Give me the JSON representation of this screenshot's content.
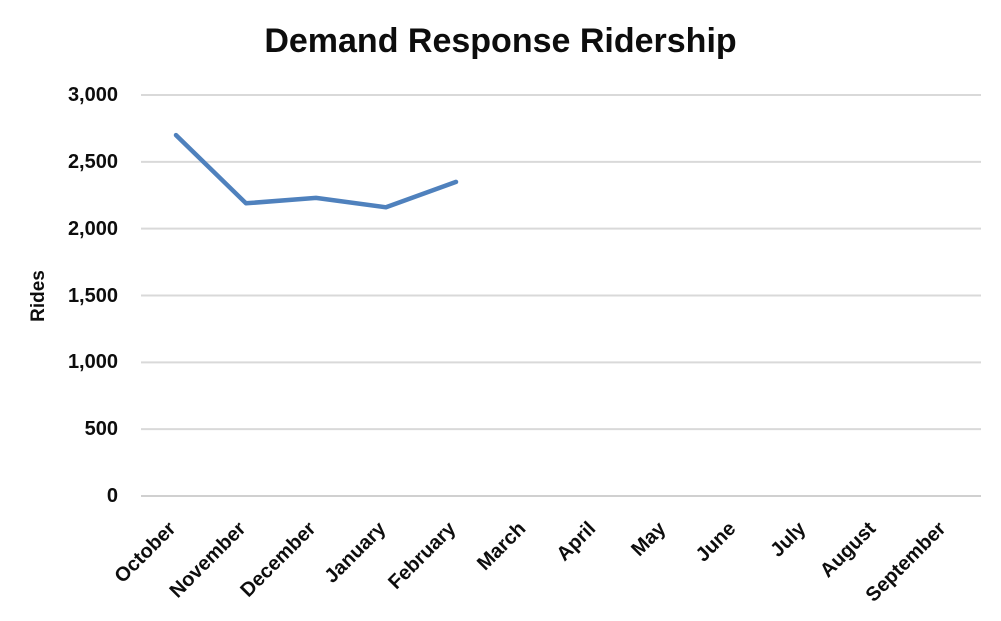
{
  "title": "Demand Response Ridership",
  "y_axis_title": "Rides",
  "chart_data": {
    "type": "line",
    "title": "Demand Response Ridership",
    "xlabel": "",
    "ylabel": "Rides",
    "categories": [
      "October",
      "November",
      "December",
      "January",
      "February",
      "March",
      "April",
      "May",
      "June",
      "July",
      "August",
      "September"
    ],
    "series": [
      {
        "name": "Demand Response Ridership",
        "values": [
          2700,
          2190,
          2230,
          2160,
          2350,
          null,
          null,
          null,
          null,
          null,
          null,
          null
        ]
      }
    ],
    "ylim": [
      0,
      3000
    ],
    "yticks": [
      0,
      500,
      1000,
      1500,
      2000,
      2500,
      3000
    ],
    "ytick_labels": [
      "0",
      "500",
      "1,000",
      "1,500",
      "2,000",
      "2,500",
      "3,000"
    ],
    "grid": "horizontal",
    "legend": "none",
    "line_color": "#4F81BD",
    "gridline_color": "#D9D9D9",
    "axis_color": "#D0D0D0",
    "text_color": "#0d0d0d"
  }
}
